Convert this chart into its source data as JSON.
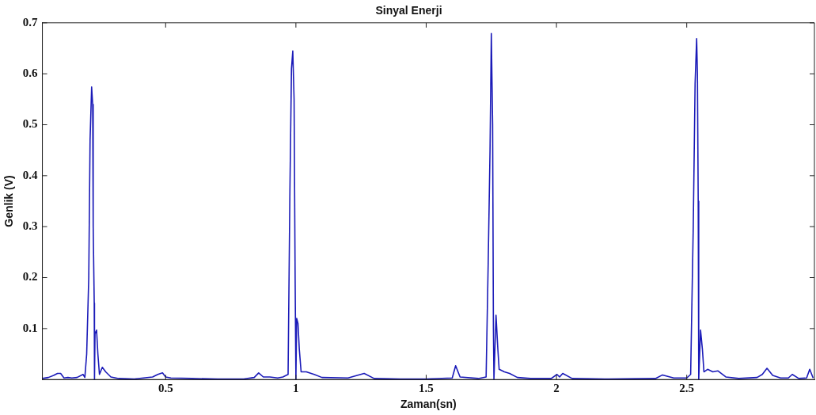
{
  "chart_data": {
    "type": "line",
    "title": "Sinyal Enerji",
    "xlabel": "Zaman(sn)",
    "ylabel": "Genlik (V)",
    "xlim": [
      0.027,
      2.99
    ],
    "xticks": [
      0.5,
      1,
      1.5,
      2,
      2.5
    ],
    "ylim": [
      0,
      0.7
    ],
    "yticks": [
      0.1,
      0.2,
      0.3,
      0.4,
      0.5,
      0.6,
      0.7
    ],
    "grid": false,
    "legend": false,
    "marker": "none",
    "line_style": "solid",
    "series": [
      {
        "color": "#1a1ab8",
        "x": [
          0.027,
          0.05,
          0.07,
          0.085,
          0.097,
          0.11,
          0.125,
          0.14,
          0.16,
          0.183,
          0.19,
          0.197,
          0.205,
          0.21,
          0.216,
          0.22,
          0.222,
          0.226,
          0.227,
          0.229,
          0.235,
          0.24,
          0.246,
          0.257,
          0.27,
          0.29,
          0.32,
          0.38,
          0.45,
          0.47,
          0.488,
          0.5,
          0.52,
          0.6,
          0.7,
          0.8,
          0.84,
          0.857,
          0.875,
          0.9,
          0.93,
          0.95,
          0.97,
          0.977,
          0.983,
          0.988,
          0.993,
          0.997,
          1.0,
          1.003,
          1.008,
          1.013,
          1.02,
          1.04,
          1.07,
          1.1,
          1.2,
          1.262,
          1.3,
          1.4,
          1.5,
          1.6,
          1.613,
          1.63,
          1.7,
          1.73,
          1.738,
          1.745,
          1.75,
          1.755,
          1.758,
          1.76,
          1.768,
          1.775,
          1.78,
          1.8,
          1.82,
          1.85,
          1.9,
          1.98,
          2.002,
          2.012,
          2.024,
          2.06,
          2.2,
          2.38,
          2.407,
          2.45,
          2.5,
          2.515,
          2.525,
          2.532,
          2.538,
          2.541,
          2.544,
          2.546,
          2.553,
          2.56,
          2.566,
          2.58,
          2.6,
          2.62,
          2.65,
          2.7,
          2.77,
          2.79,
          2.808,
          2.83,
          2.86,
          2.89,
          2.905,
          2.93,
          2.96,
          2.972,
          2.985
        ],
        "values": [
          0.002,
          0.004,
          0.008,
          0.012,
          0.012,
          0.003,
          0.004,
          0.003,
          0.004,
          0.01,
          0.004,
          0.05,
          0.2,
          0.47,
          0.574,
          0.54,
          0.3,
          0.15,
          0,
          0.09,
          0.097,
          0.05,
          0.01,
          0.024,
          0.015,
          0.005,
          0.002,
          0.001,
          0.005,
          0.01,
          0.013,
          0.005,
          0.003,
          0.002,
          0.001,
          0.001,
          0.004,
          0.013,
          0.005,
          0.005,
          0.003,
          0.005,
          0.01,
          0.371,
          0.61,
          0.645,
          0.55,
          0.2,
          0,
          0.12,
          0.11,
          0.06,
          0.015,
          0.015,
          0.01,
          0.004,
          0.003,
          0.012,
          0.002,
          0.001,
          0.001,
          0.003,
          0.027,
          0.005,
          0.002,
          0.005,
          0.229,
          0.45,
          0.679,
          0.5,
          0.1,
          0,
          0.126,
          0.06,
          0.02,
          0.015,
          0.012,
          0.004,
          0.002,
          0.002,
          0.01,
          0.005,
          0.012,
          0.002,
          0.001,
          0.002,
          0.009,
          0.003,
          0.003,
          0.01,
          0.3,
          0.58,
          0.669,
          0.6,
          0.35,
          0,
          0.097,
          0.06,
          0.015,
          0.02,
          0.015,
          0.017,
          0.005,
          0.002,
          0.004,
          0.01,
          0.022,
          0.008,
          0.003,
          0.003,
          0.01,
          0.002,
          0.003,
          0.02,
          0.003
        ]
      }
    ]
  }
}
